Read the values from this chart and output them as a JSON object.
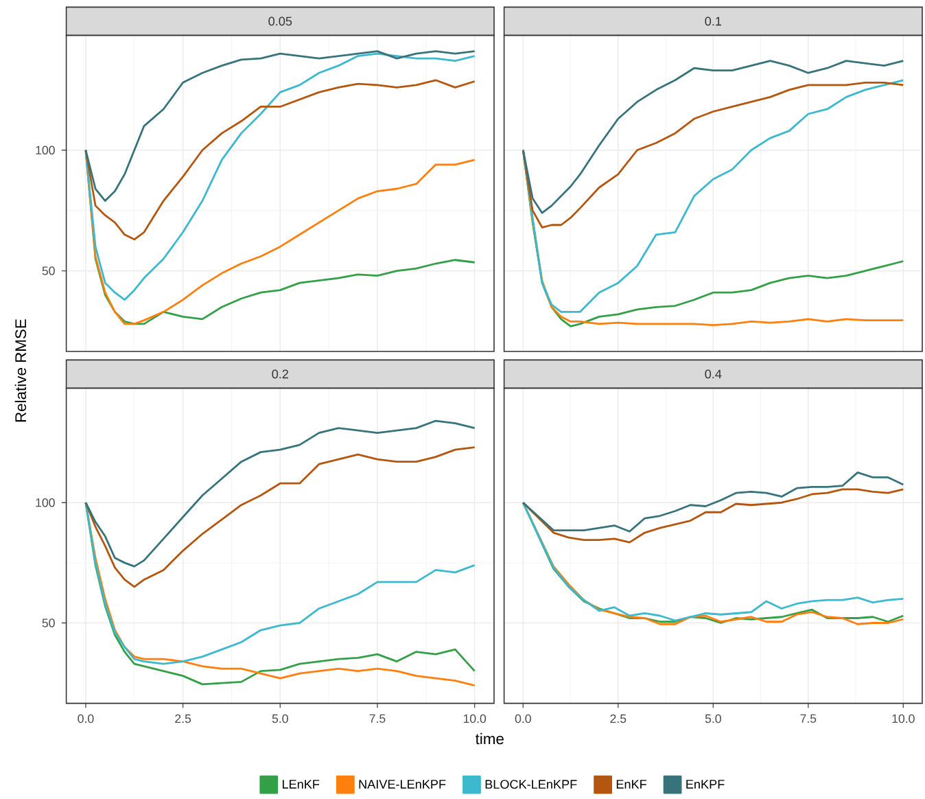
{
  "chart_data": [
    {
      "type": "line",
      "title": "0.05",
      "ylabel": "Relative RMSE",
      "x": [
        0,
        0.25,
        0.5,
        0.75,
        1,
        1.25,
        1.5,
        2,
        2.5,
        3,
        3.5,
        4,
        4.5,
        5,
        5.5,
        6,
        6.5,
        7,
        7.5,
        8,
        8.5,
        9,
        9.5,
        10
      ],
      "series": [
        {
          "color": "#33a048",
          "values": [
            100,
            55,
            40,
            33,
            29,
            28,
            28,
            33,
            31,
            30,
            35,
            38.5,
            41,
            42,
            45,
            46,
            47,
            48.5,
            48,
            50,
            51,
            53,
            54.5,
            53.5
          ]
        },
        {
          "color": "#ff7f0e",
          "values": [
            100,
            56,
            41,
            33,
            28,
            28,
            29.5,
            33,
            38,
            44,
            49,
            53,
            56,
            60,
            65,
            70,
            75,
            80,
            83,
            84,
            86,
            94,
            94,
            96
          ]
        },
        {
          "color": "#3cb8cf",
          "values": [
            100,
            60,
            45,
            41,
            38,
            42,
            47,
            55,
            66,
            79,
            96,
            107,
            115,
            124,
            127,
            132,
            135,
            139,
            140,
            139,
            138,
            138,
            137,
            139
          ]
        },
        {
          "color": "#b5560f",
          "values": [
            100,
            77,
            73,
            70,
            65,
            63,
            66,
            79,
            89,
            100,
            107,
            112,
            118,
            118,
            121,
            124,
            126,
            127.5,
            127,
            126,
            127,
            129,
            126,
            128.5
          ]
        },
        {
          "color": "#36737b",
          "values": [
            100,
            84,
            79,
            83,
            90,
            100,
            110,
            117,
            128,
            132,
            135,
            137.5,
            138,
            140,
            139,
            138,
            139,
            140,
            141,
            138,
            140,
            141,
            140,
            141
          ]
        }
      ],
      "xlim": [
        -0.5,
        10.5
      ],
      "ylim": [
        16.6,
        147.6
      ],
      "xticks": [
        0,
        2.5,
        5,
        7.5,
        10
      ],
      "yticks": [
        50,
        100
      ],
      "grid": true,
      "tick_labels": "y"
    },
    {
      "type": "line",
      "title": "0.1",
      "x": [
        0,
        0.25,
        0.5,
        0.75,
        1,
        1.25,
        1.5,
        2,
        2.5,
        3,
        3.5,
        4,
        4.5,
        5,
        5.5,
        6,
        6.5,
        7,
        7.5,
        8,
        8.5,
        9,
        9.5,
        10
      ],
      "series": [
        {
          "color": "#33a048",
          "values": [
            100,
            70,
            45,
            35,
            30,
            27,
            28,
            31,
            32,
            34,
            35,
            35.5,
            38,
            41,
            41,
            42,
            45,
            47,
            48,
            47,
            48,
            50,
            52,
            54
          ]
        },
        {
          "color": "#ff7f0e",
          "values": [
            100,
            71,
            46,
            35,
            31,
            29,
            29,
            28,
            28.5,
            28,
            28,
            28,
            28,
            27.5,
            28,
            29,
            28.5,
            29,
            30,
            29,
            30,
            29.5,
            29.5,
            29.5
          ]
        },
        {
          "color": "#3cb8cf",
          "values": [
            100,
            72,
            45,
            36,
            33,
            33,
            33,
            41,
            45,
            52,
            65,
            66,
            81,
            88,
            92,
            100,
            105,
            108,
            115,
            117,
            122,
            125,
            127,
            129
          ]
        },
        {
          "color": "#b5560f",
          "values": [
            100,
            75,
            68,
            69,
            69,
            72,
            76,
            84.5,
            90,
            100,
            103,
            107,
            113,
            116,
            118,
            120,
            122,
            125,
            127,
            127,
            127,
            128,
            128,
            127
          ]
        },
        {
          "color": "#36737b",
          "values": [
            100,
            80,
            74,
            77,
            81,
            85,
            90,
            102,
            113,
            120,
            125,
            129,
            134,
            133,
            133,
            135,
            137,
            135,
            132,
            134,
            137,
            136,
            135,
            137
          ]
        }
      ],
      "xlim": [
        -0.5,
        10.5
      ],
      "ylim": [
        16.6,
        147.6
      ],
      "xticks": [
        0,
        2.5,
        5,
        7.5,
        10
      ],
      "yticks": [
        50,
        100
      ],
      "grid": true,
      "tick_labels": false
    },
    {
      "type": "line",
      "title": "0.2",
      "xlabel": "time",
      "x": [
        0,
        0.25,
        0.5,
        0.75,
        1,
        1.25,
        1.5,
        2,
        2.5,
        3,
        3.5,
        4,
        4.5,
        5,
        5.5,
        6,
        6.5,
        7,
        7.5,
        8,
        8.5,
        9,
        9.5,
        10
      ],
      "series": [
        {
          "color": "#33a048",
          "values": [
            100,
            74,
            57,
            45,
            38,
            33,
            32,
            30,
            28,
            24.5,
            25,
            25.5,
            30,
            30.5,
            33,
            34,
            35,
            35.5,
            37,
            34,
            38,
            37,
            39,
            30
          ]
        },
        {
          "color": "#ff7f0e",
          "values": [
            100,
            77,
            60,
            47,
            40,
            36,
            35,
            35,
            34,
            32,
            31,
            31,
            29,
            27,
            29,
            30,
            31,
            30,
            31,
            30,
            28,
            27,
            26,
            24
          ]
        },
        {
          "color": "#3cb8cf",
          "values": [
            100,
            75,
            58,
            46,
            40,
            35,
            34,
            33,
            34,
            36,
            39,
            42,
            47,
            49,
            50,
            56,
            59,
            62,
            67,
            67,
            67,
            72,
            71,
            74
          ]
        },
        {
          "color": "#b5560f",
          "values": [
            100,
            90,
            82,
            73,
            68,
            65,
            68,
            72,
            80,
            87,
            93,
            99,
            103,
            108,
            108,
            116,
            118,
            120,
            118,
            117,
            117,
            119,
            122,
            123
          ]
        },
        {
          "color": "#36737b",
          "values": [
            100,
            92,
            86,
            77,
            75,
            73.5,
            76,
            85,
            94,
            103,
            110,
            117,
            121,
            122,
            124,
            129,
            131,
            130,
            129,
            130,
            131,
            134,
            133,
            131
          ]
        }
      ],
      "xlim": [
        -0.5,
        10.5
      ],
      "ylim": [
        16.6,
        147.6
      ],
      "xticks": [
        {
          "value": 0,
          "label": "0.0"
        },
        {
          "value": 2.5,
          "label": "2.5"
        },
        {
          "value": 5,
          "label": "5.0"
        },
        {
          "value": 7.5,
          "label": "7.5"
        },
        {
          "value": 10,
          "label": "10.0"
        }
      ],
      "yticks": [
        50,
        100
      ],
      "grid": true
    },
    {
      "type": "line",
      "title": "0.4",
      "x": [
        0,
        0.8,
        1.2,
        1.6,
        2,
        2.4,
        2.8,
        3.2,
        3.6,
        4,
        4.4,
        4.8,
        5.2,
        5.6,
        6,
        6.4,
        6.8,
        7.2,
        7.6,
        8,
        8.4,
        8.8,
        9.2,
        9.6,
        10
      ],
      "series": [
        {
          "name": "LEnKF",
          "color": "#33a048",
          "values": [
            100,
            72.5,
            65,
            59,
            56,
            54,
            52,
            52,
            50.5,
            50.5,
            52.5,
            52,
            50,
            52,
            51.5,
            52,
            52.5,
            54,
            55.5,
            52,
            52,
            52,
            52.5,
            50.5,
            53
          ]
        },
        {
          "name": "NAIVE-LEnKPF",
          "color": "#ff7f0e",
          "values": [
            100,
            73.5,
            66,
            59.5,
            55.5,
            54,
            52.5,
            52,
            49.5,
            49.5,
            52.5,
            53,
            50.5,
            51.5,
            52.5,
            50.5,
            50.5,
            53.5,
            54.5,
            52.5,
            52,
            49.5,
            50,
            50,
            51.5
          ]
        },
        {
          "name": "BLOCK-LEnKPF",
          "color": "#3cb8cf",
          "values": [
            100,
            73,
            65,
            59.5,
            55,
            56.5,
            53,
            54,
            53,
            51,
            52.5,
            54,
            53.5,
            54,
            54.5,
            59,
            56,
            58,
            59,
            59.5,
            59.5,
            60.5,
            58.5,
            59.5,
            60
          ]
        },
        {
          "name": "EnKF",
          "color": "#b5560f",
          "values": [
            100,
            87.5,
            85.5,
            84.5,
            84.5,
            85,
            83.5,
            87.5,
            89.5,
            91,
            92.5,
            96,
            96,
            99.5,
            99,
            99.5,
            100,
            101.5,
            103.5,
            104,
            105.5,
            105.5,
            104.5,
            104,
            105.5
          ]
        },
        {
          "name": "EnKPF",
          "color": "#36737b",
          "values": [
            100,
            88.5,
            88.5,
            88.5,
            89.5,
            90.5,
            88,
            93.5,
            94.5,
            96.5,
            99,
            98.5,
            101,
            104,
            104.5,
            104,
            102.5,
            106,
            106.5,
            106.5,
            107,
            112.5,
            110.5,
            110.5,
            107.5
          ]
        }
      ],
      "xlim": [
        -0.5,
        10.5
      ],
      "ylim": [
        16.6,
        147.6
      ],
      "xticks": [
        {
          "value": 0,
          "label": "0.0"
        },
        {
          "value": 2.5,
          "label": "2.5"
        },
        {
          "value": 5,
          "label": "5.0"
        },
        {
          "value": 7.5,
          "label": "7.5"
        },
        {
          "value": 10,
          "label": "10.0"
        }
      ],
      "yticks": [
        50,
        100
      ],
      "grid": true,
      "tick_labels": "x",
      "legend": "bottom"
    }
  ]
}
